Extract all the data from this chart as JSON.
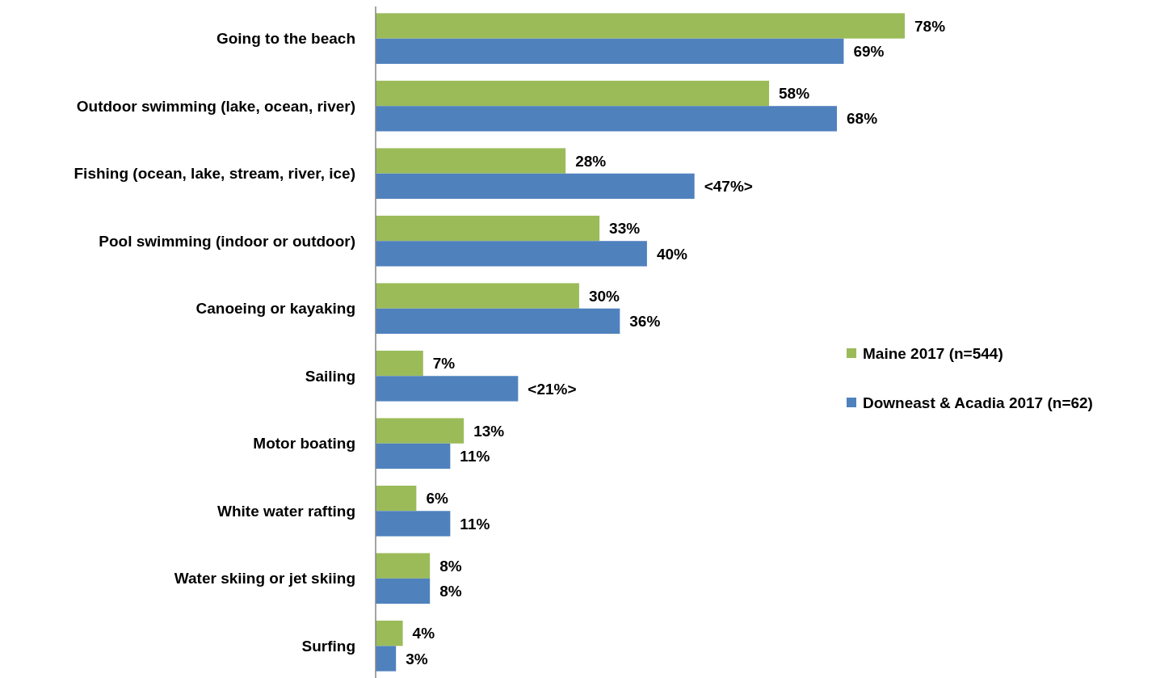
{
  "chart_data": {
    "type": "bar",
    "orientation": "horizontal",
    "categories": [
      "Going to the beach",
      "Outdoor swimming (lake, ocean, river)",
      "Fishing (ocean, lake, stream, river, ice)",
      "Pool swimming (indoor or outdoor)",
      "Canoeing or kayaking",
      "Sailing",
      "Motor boating",
      "White water rafting",
      "Water skiing or jet skiing",
      "Surfing"
    ],
    "series": [
      {
        "name": "Maine 2017 (n=544)",
        "color": "#9bbb59",
        "values": [
          78,
          58,
          28,
          33,
          30,
          7,
          13,
          6,
          8,
          4
        ],
        "value_labels": [
          "78%",
          "58%",
          "28%",
          "33%",
          "30%",
          "7%",
          "13%",
          "6%",
          "8%",
          "4%"
        ]
      },
      {
        "name": "Downeast & Acadia 2017 (n=62)",
        "color": "#4f81bd",
        "values": [
          69,
          68,
          47,
          40,
          36,
          21,
          11,
          11,
          8,
          3
        ],
        "value_labels": [
          "69%",
          "68%",
          "<47%>",
          "40%",
          "36%",
          "<21%>",
          "11%",
          "11%",
          "8%",
          "3%"
        ]
      }
    ],
    "legend": "right"
  }
}
